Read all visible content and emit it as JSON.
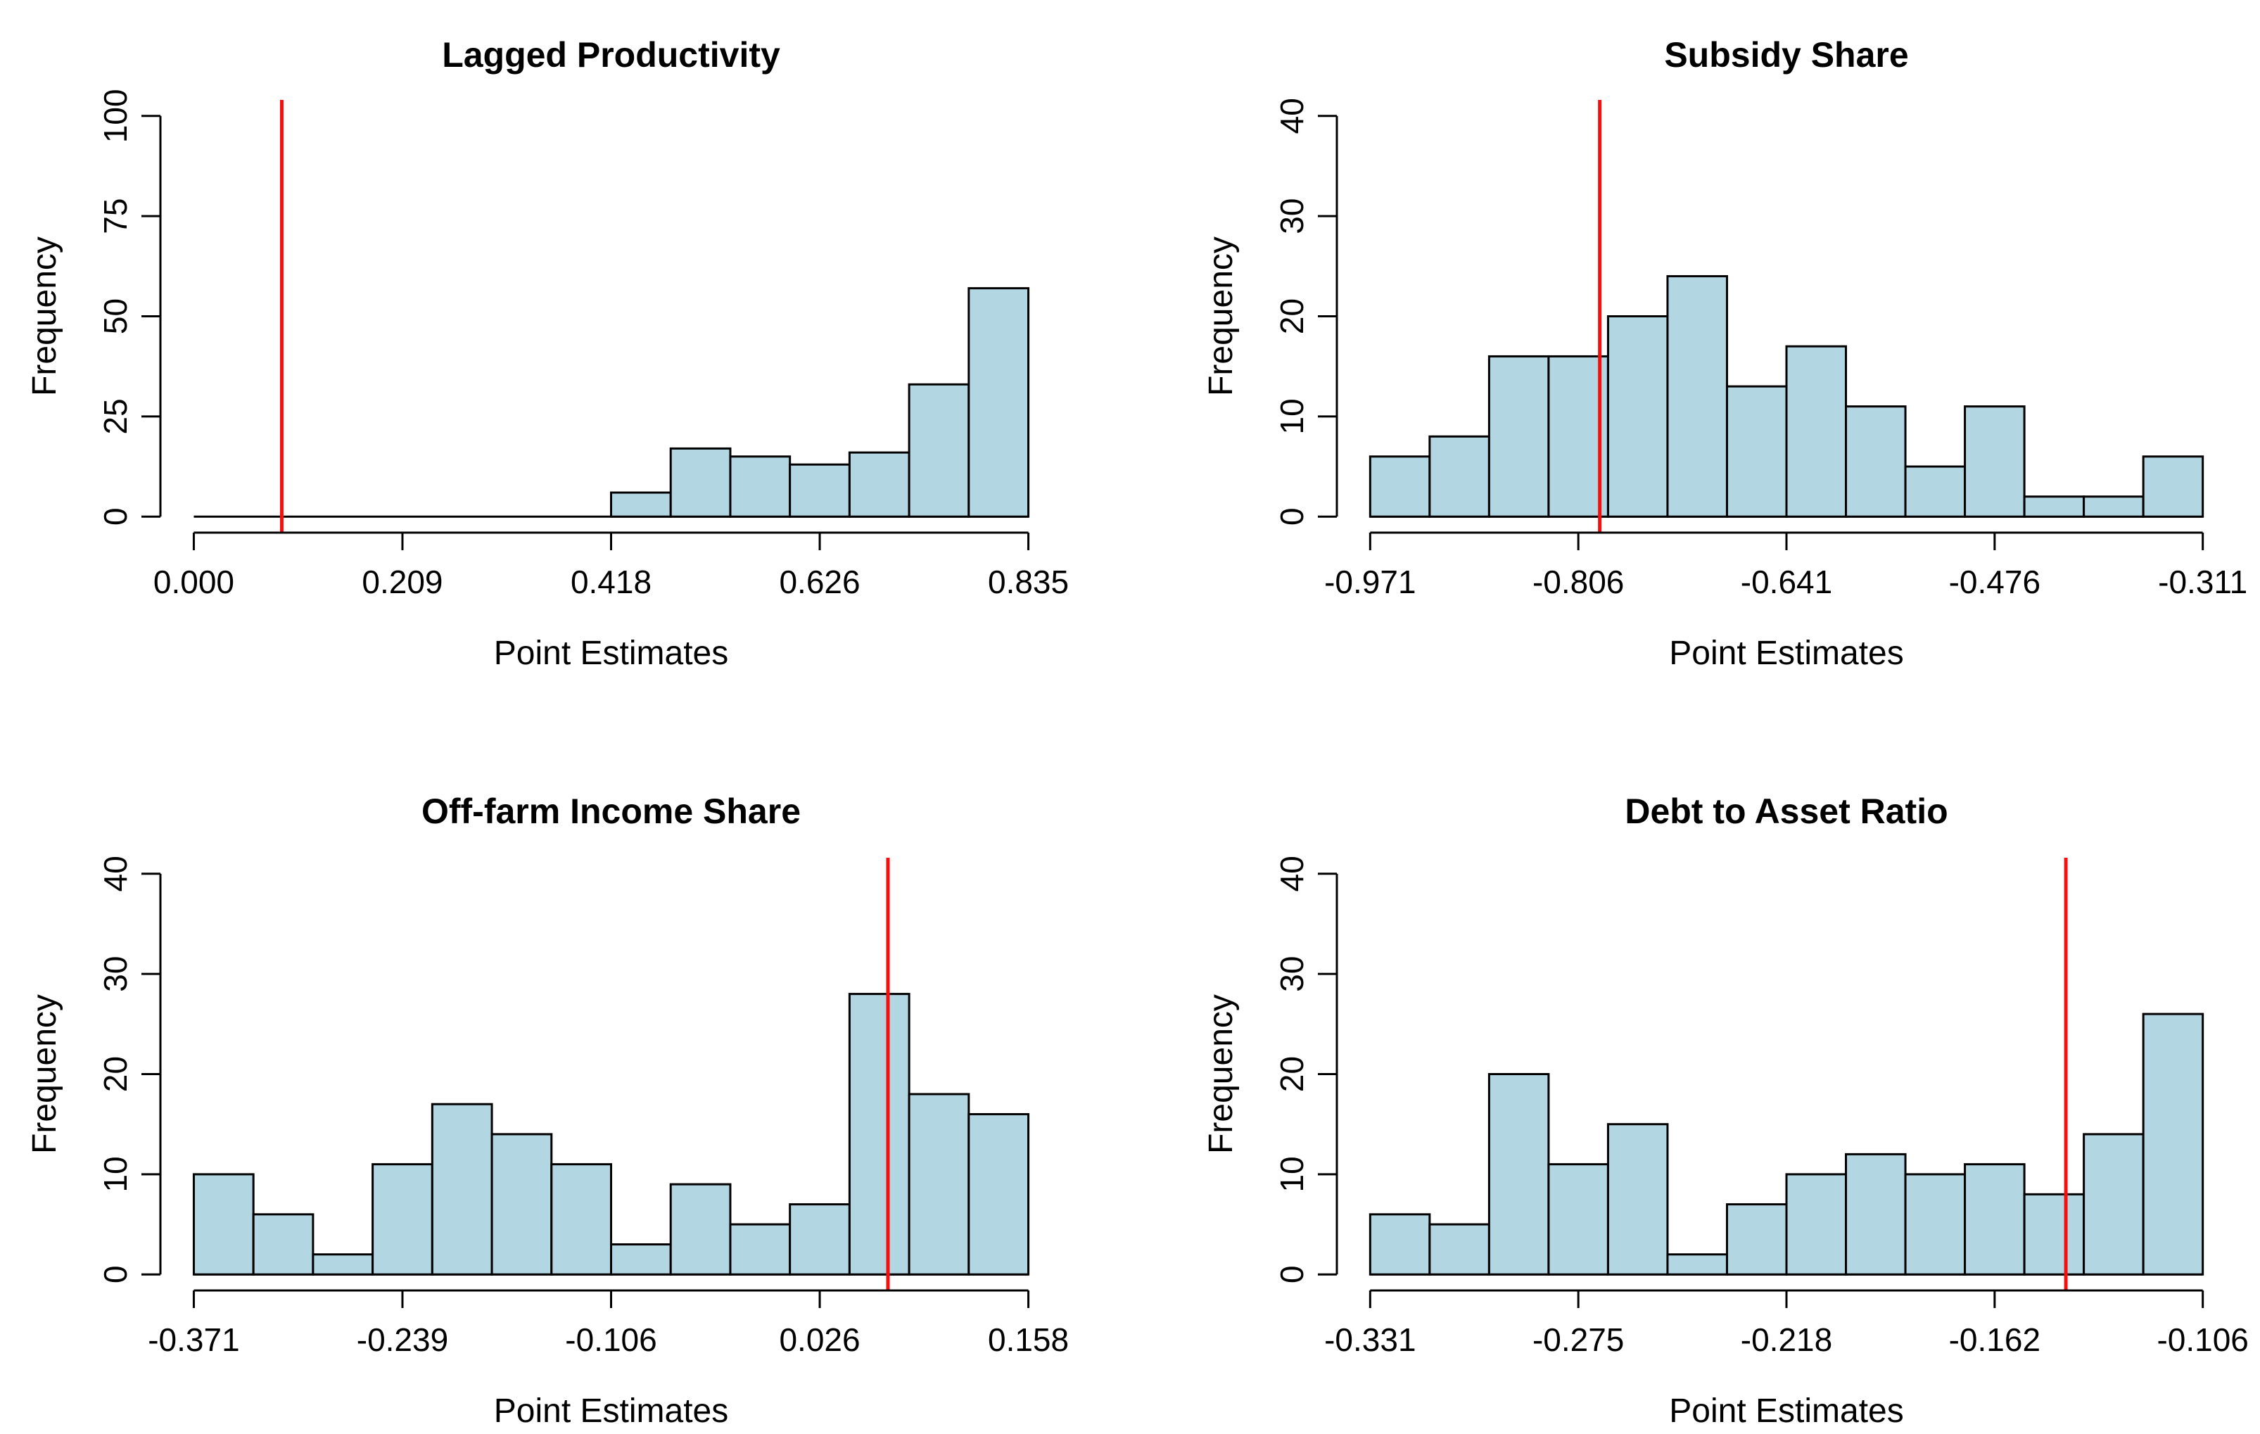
{
  "figure_title": "Histograms of replication point estimates with reference lines",
  "colors": {
    "background": "#ffffff",
    "bar_fill": "#b3d6e3",
    "bar_border": "#000000",
    "axis": "#000000",
    "text": "#000000",
    "ref_line": "#f50f0f"
  },
  "chart_data": [
    {
      "type": "bar",
      "subtype": "histogram",
      "panel": "top-left",
      "title": "Lagged Productivity",
      "xlabel": "Point Estimates",
      "ylabel": "Frequency",
      "xlim": [
        0.0,
        0.835
      ],
      "ylim": [
        0,
        100
      ],
      "x_tick_labels": [
        "0.000",
        "0.209",
        "0.418",
        "0.626",
        "0.835"
      ],
      "y_tick_labels": [
        "0",
        "25",
        "50",
        "75",
        "100"
      ],
      "bin_count": 14,
      "bin_start": 0.0,
      "bin_width": 0.0596,
      "bin_heights": [
        0,
        0,
        0,
        0,
        0,
        0,
        0,
        6,
        17,
        15,
        13,
        16,
        33,
        57
      ],
      "ref_line_x": 0.088,
      "grid": "off",
      "legend": "none"
    },
    {
      "type": "bar",
      "subtype": "histogram",
      "panel": "top-right",
      "title": "Subsidy Share",
      "xlabel": "Point Estimates",
      "ylabel": "Frequency",
      "xlim": [
        -0.971,
        -0.311
      ],
      "ylim": [
        0,
        40
      ],
      "x_tick_labels": [
        "-0.971",
        "-0.806",
        "-0.641",
        "-0.476",
        "-0.311"
      ],
      "y_tick_labels": [
        "0",
        "10",
        "20",
        "30",
        "40"
      ],
      "bin_count": 14,
      "bin_start": -0.971,
      "bin_width": 0.0471,
      "bin_heights": [
        6,
        8,
        16,
        16,
        20,
        24,
        13,
        17,
        11,
        5,
        11,
        2,
        2,
        6
      ],
      "ref_line_x": -0.789,
      "grid": "off",
      "legend": "none"
    },
    {
      "type": "bar",
      "subtype": "histogram",
      "panel": "bottom-left",
      "title": "Off-farm Income Share",
      "xlabel": "Point Estimates",
      "ylabel": "Frequency",
      "xlim": [
        -0.371,
        0.158
      ],
      "ylim": [
        0,
        40
      ],
      "x_tick_labels": [
        "-0.371",
        "-0.239",
        "-0.106",
        "0.026",
        "0.158"
      ],
      "y_tick_labels": [
        "0",
        "10",
        "20",
        "30",
        "40"
      ],
      "bin_count": 14,
      "bin_start": -0.371,
      "bin_width": 0.0378,
      "bin_heights": [
        10,
        6,
        2,
        11,
        17,
        14,
        11,
        3,
        9,
        5,
        7,
        28,
        18,
        16
      ],
      "ref_line_x": 0.069,
      "grid": "off",
      "legend": "none"
    },
    {
      "type": "bar",
      "subtype": "histogram",
      "panel": "bottom-right",
      "title": "Debt to Asset Ratio",
      "xlabel": "Point Estimates",
      "ylabel": "Frequency",
      "xlim": [
        -0.331,
        -0.106
      ],
      "ylim": [
        0,
        40
      ],
      "x_tick_labels": [
        "-0.331",
        "-0.275",
        "-0.218",
        "-0.162",
        "-0.106"
      ],
      "y_tick_labels": [
        "0",
        "10",
        "20",
        "30",
        "40"
      ],
      "bin_count": 14,
      "bin_start": -0.331,
      "bin_width": 0.0161,
      "bin_heights": [
        6,
        5,
        20,
        11,
        15,
        2,
        7,
        10,
        12,
        10,
        11,
        8,
        14,
        26
      ],
      "ref_line_x": -0.143,
      "grid": "off",
      "legend": "none"
    }
  ]
}
